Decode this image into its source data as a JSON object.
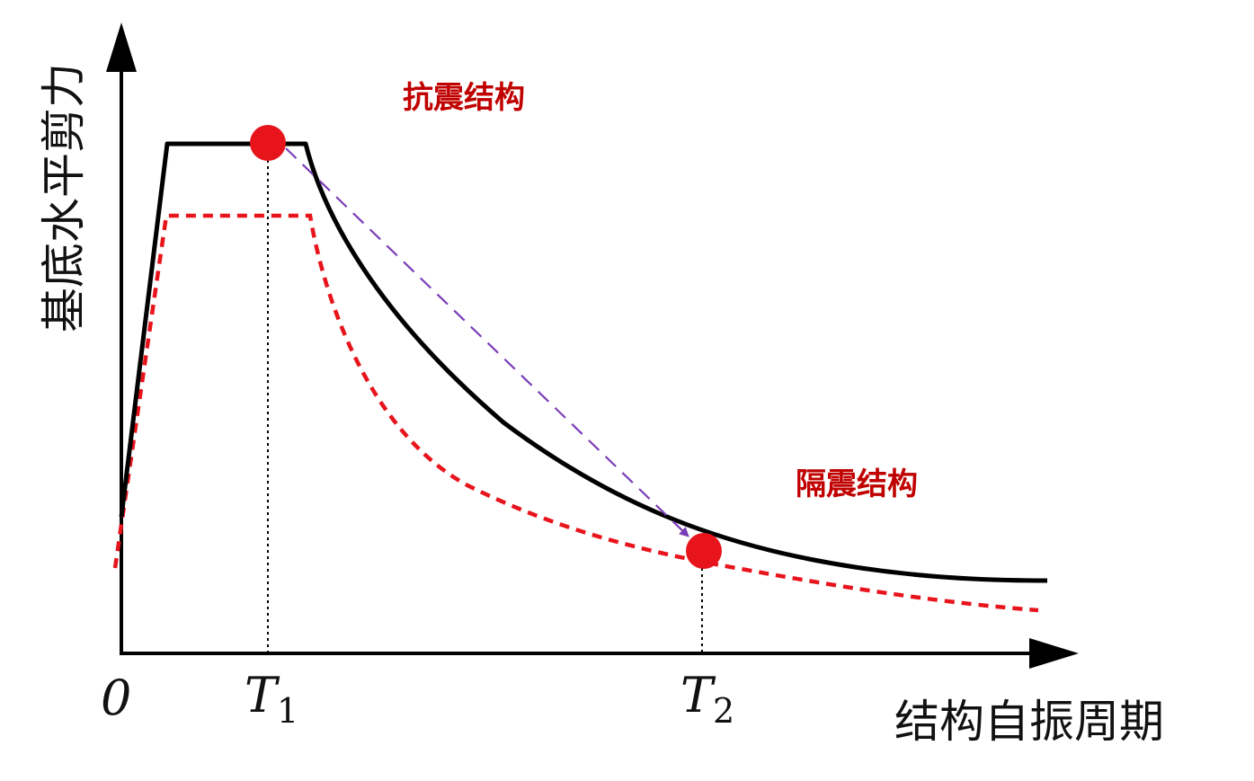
{
  "axes": {
    "y_title": "基底水平剪力",
    "x_title": "结构自振周期",
    "origin_label": "0",
    "t1_label": {
      "main": "T",
      "sub": "1"
    },
    "t2_label": {
      "main": "T",
      "sub": "2"
    }
  },
  "annotations": {
    "seismic_label": "抗震结构",
    "isolated_label": "隔震结构"
  },
  "colors": {
    "axis": "#000000",
    "solid_curve": "#000000",
    "dashed_curve": "#e8141c",
    "marker": "#e8141c",
    "shift_arrow": "#7a3db8",
    "label_red": "#c00000"
  },
  "icons": {
    "marker_t1": "filled-circle",
    "marker_t2": "filled-circle"
  }
}
